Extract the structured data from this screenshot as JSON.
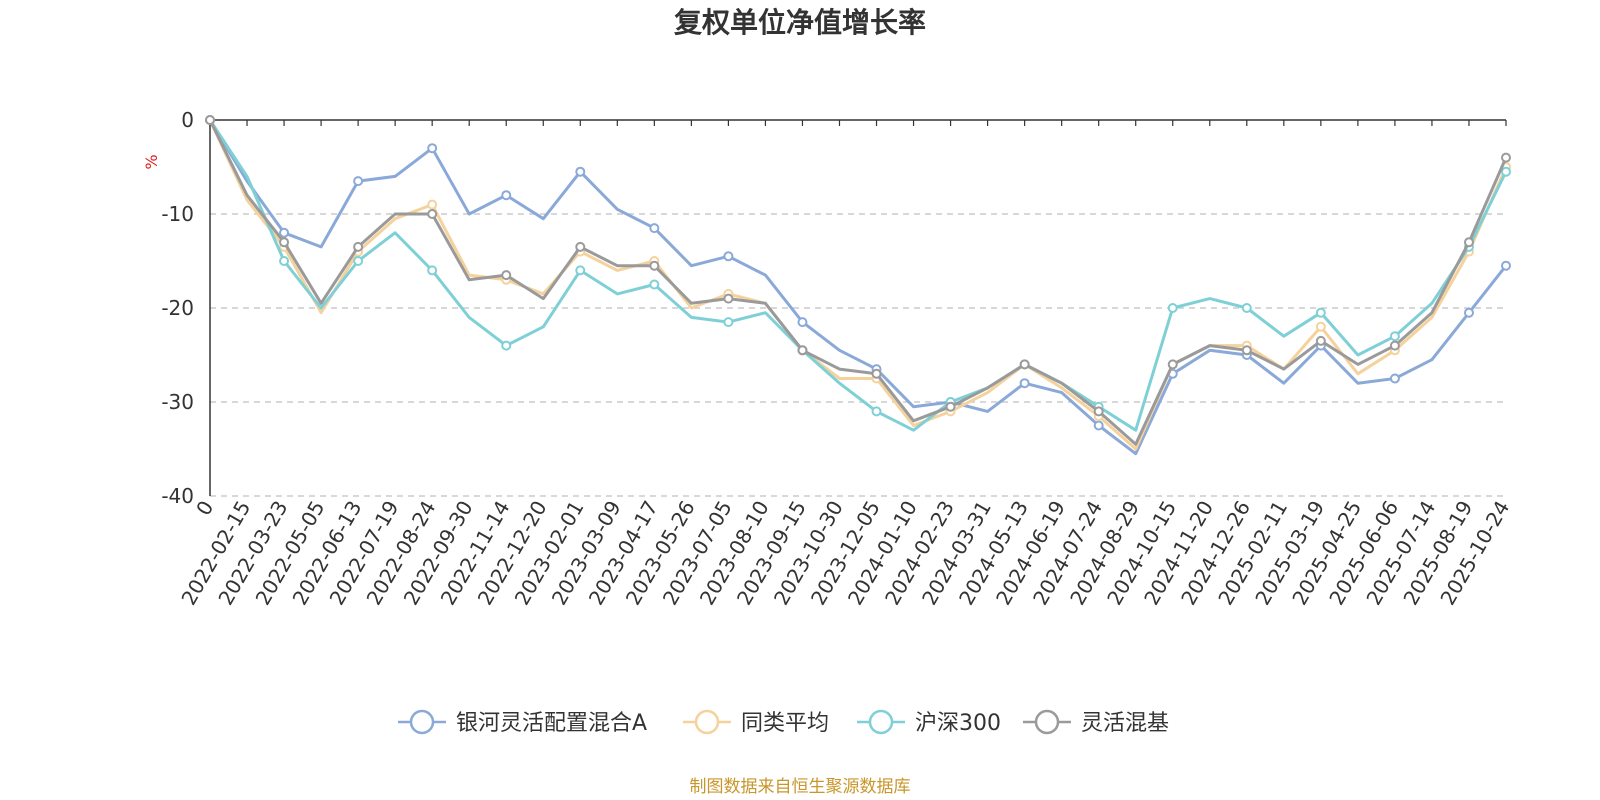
{
  "chart_data": {
    "type": "line",
    "title": "复权单位净值增长率",
    "ylabel": "%",
    "ylim": [
      -40,
      0
    ],
    "yticks": [
      0,
      -10,
      -20,
      -30,
      -40
    ],
    "ytick_labels": [
      "0",
      "-10",
      "-20",
      "-30",
      "-40"
    ],
    "grid": true,
    "legend_position": "bottom",
    "source": "制图数据来自恒生聚源数据库",
    "x_labels": [
      "0",
      "2022-02-15",
      "2022-03-23",
      "2022-05-05",
      "2022-06-13",
      "2022-07-19",
      "2022-08-24",
      "2022-09-30",
      "2022-11-14",
      "2022-12-20",
      "2023-02-01",
      "2023-03-09",
      "2023-04-17",
      "2023-05-26",
      "2023-07-05",
      "2023-08-10",
      "2023-09-15",
      "2023-10-30",
      "2023-12-05",
      "2024-01-10",
      "2024-02-23",
      "2024-03-31",
      "2024-05-13",
      "2024-06-19",
      "2024-07-24",
      "2024-08-29",
      "2024-10-15",
      "2024-11-20",
      "2024-12-26",
      "2025-02-11",
      "2025-03-19",
      "2025-04-25",
      "2025-06-06",
      "2025-07-14",
      "2025-08-19",
      "2025-10-24"
    ],
    "x_index": [
      0,
      1,
      2,
      3,
      4,
      5,
      6,
      7,
      8,
      9,
      10,
      11,
      12,
      13,
      14,
      15,
      16,
      17,
      18,
      19,
      20,
      21,
      22,
      23,
      24,
      25,
      26,
      27,
      28,
      29,
      30,
      31,
      32,
      33,
      34,
      35
    ],
    "series": [
      {
        "name": "银河灵活配置混合A",
        "color": "#8aa9d8",
        "values": [
          0,
          -6.5,
          -12,
          -13.5,
          -6.5,
          -6,
          -3,
          -10,
          -8,
          -10.5,
          -5.5,
          -9.5,
          -11.5,
          -15.5,
          -14.5,
          -16.5,
          -21.5,
          -24.5,
          -26.5,
          -30.5,
          -30,
          -31,
          -28,
          -29,
          -32.5,
          -35.5,
          -27,
          -24.5,
          -25,
          -28,
          -24,
          -28,
          -27.5,
          -25.5,
          -20.5,
          -15.5
        ]
      },
      {
        "name": "同类平均",
        "color": "#f5d29c",
        "values": [
          0,
          -8.5,
          -13.5,
          -20.5,
          -14,
          -10.5,
          -9,
          -16.5,
          -17,
          -18.5,
          -14,
          -16,
          -15,
          -20,
          -18.5,
          -19.5,
          -24.5,
          -27.5,
          -27.5,
          -32.5,
          -31,
          -29,
          -26,
          -28.5,
          -31.5,
          -35,
          -26,
          -24,
          -24,
          -26.5,
          -22,
          -27,
          -24.5,
          -21,
          -14,
          -5
        ]
      },
      {
        "name": "沪深300",
        "color": "#7fd0d6",
        "values": [
          0,
          -6,
          -15,
          -20,
          -15,
          -12,
          -16,
          -21,
          -24,
          -22,
          -16,
          -18.5,
          -17.5,
          -21,
          -21.5,
          -20.5,
          -24.5,
          -28,
          -31,
          -33,
          -30,
          -28.5,
          -26,
          -28,
          -30.5,
          -33,
          -20,
          -19,
          -20,
          -23,
          -20.5,
          -25,
          -23,
          -19.5,
          -13.5,
          -5.5
        ]
      },
      {
        "name": "灵活混基",
        "color": "#9a9a9a",
        "values": [
          0,
          -8,
          -13,
          -19.5,
          -13.5,
          -10,
          -10,
          -17,
          -16.5,
          -19,
          -13.5,
          -15.5,
          -15.5,
          -19.5,
          -19,
          -19.5,
          -24.5,
          -26.5,
          -27,
          -32,
          -30.5,
          -28.5,
          -26,
          -28,
          -31,
          -34.5,
          -26,
          -24,
          -24.5,
          -26.5,
          -23.5,
          -26,
          -24,
          -20.5,
          -13,
          -4
        ]
      }
    ]
  }
}
